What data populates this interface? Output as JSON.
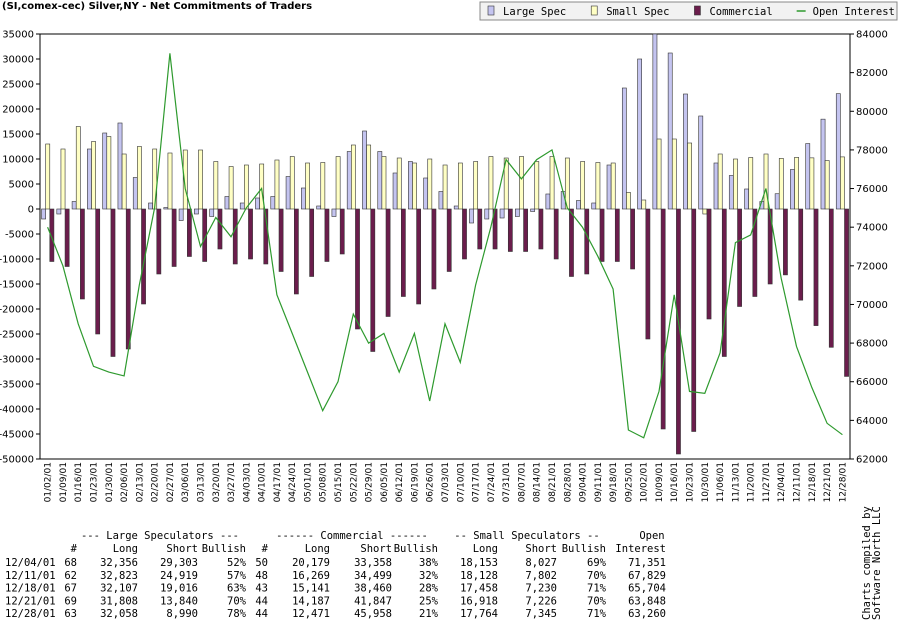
{
  "chart_data": {
    "type": "bar",
    "title": "(SI,comex-cec) Silver,NY - Net Commitments of Traders",
    "categories": [
      "01/02/01",
      "01/09/01",
      "01/16/01",
      "01/23/01",
      "01/30/01",
      "02/06/01",
      "02/13/01",
      "02/20/01",
      "02/27/01",
      "03/06/01",
      "03/13/01",
      "03/20/01",
      "03/27/01",
      "04/03/01",
      "04/10/01",
      "04/17/01",
      "04/24/01",
      "05/01/01",
      "05/08/01",
      "05/15/01",
      "05/22/01",
      "05/29/01",
      "06/05/01",
      "06/12/01",
      "06/19/01",
      "06/26/01",
      "07/03/01",
      "07/10/01",
      "07/17/01",
      "07/24/01",
      "07/31/01",
      "08/07/01",
      "08/14/01",
      "08/21/01",
      "08/28/01",
      "09/04/01",
      "09/11/01",
      "09/18/01",
      "09/25/01",
      "10/02/01",
      "10/09/01",
      "10/16/01",
      "10/23/01",
      "10/30/01",
      "11/06/01",
      "11/13/01",
      "11/20/01",
      "11/27/01",
      "12/04/01",
      "12/11/01",
      "12/18/01",
      "12/21/01",
      "12/28/01"
    ],
    "series": [
      {
        "name": "Large Spec",
        "color": "#c4c4f0",
        "values": [
          -2000,
          -1000,
          1500,
          12000,
          15200,
          17200,
          6300,
          1200,
          300,
          -2300,
          -1000,
          -1500,
          2500,
          1200,
          2200,
          2500,
          6500,
          4200,
          600,
          -1500,
          11500,
          15600,
          11500,
          7200,
          9500,
          6200,
          3500,
          600,
          -2800,
          -2000,
          -1800,
          -1500,
          -500,
          3000,
          3500,
          1700,
          1200,
          8800,
          24200,
          30000,
          35000,
          31200,
          23000,
          18600,
          9200,
          6700,
          4000,
          1500,
          3053,
          7904,
          13091,
          17968,
          23068
        ]
      },
      {
        "name": "Small Spec",
        "color": "#ffffc4",
        "values": [
          13000,
          12000,
          16500,
          13500,
          14500,
          11000,
          12500,
          12000,
          11200,
          11800,
          11800,
          9500,
          8500,
          8800,
          9000,
          9800,
          10500,
          9200,
          9300,
          10500,
          12800,
          12800,
          10500,
          10200,
          9200,
          10000,
          8800,
          9200,
          9500,
          10500,
          10200,
          10500,
          9500,
          10500,
          10200,
          9500,
          9300,
          9200,
          3300,
          1800,
          14000,
          14000,
          13200,
          -1000,
          11000,
          10000,
          10300,
          11000,
          10126,
          10326,
          10228,
          9692,
          10419
        ]
      },
      {
        "name": "Commercial",
        "color": "#6b1d4c",
        "values": [
          -10500,
          -11500,
          -18000,
          -25000,
          -29500,
          -28000,
          -19000,
          -13000,
          -11500,
          -9500,
          -10500,
          -8000,
          -11000,
          -10000,
          -11000,
          -12500,
          -17000,
          -13500,
          -10500,
          -9000,
          -24000,
          -28500,
          -21500,
          -17500,
          -19000,
          -16000,
          -12500,
          -10000,
          -8000,
          -8000,
          -8500,
          -8500,
          -8000,
          -10000,
          -13500,
          -13000,
          -10500,
          -10500,
          -12000,
          -26000,
          -44000,
          -49000,
          -44500,
          -22000,
          -29500,
          -19500,
          -17500,
          -15000,
          -13179,
          -18230,
          -23319,
          -27660,
          -33487
        ]
      },
      {
        "name": "Open Interest",
        "color": "#2e9a2e",
        "type": "line",
        "axis": "y2",
        "values": [
          74000,
          72000,
          69000,
          66800,
          66500,
          66300,
          71000,
          75000,
          83000,
          76000,
          73000,
          74500,
          73500,
          75000,
          76000,
          70500,
          68500,
          66500,
          64500,
          66000,
          69500,
          68000,
          68500,
          66500,
          68500,
          65000,
          69000,
          67000,
          71000,
          74000,
          77500,
          76500,
          77500,
          78000,
          75000,
          74000,
          72500,
          70800,
          63500,
          63100,
          65500,
          70500,
          65500,
          65400,
          67500,
          73200,
          73600,
          76000,
          71351,
          67829,
          65704,
          63848,
          63260
        ]
      }
    ],
    "ylim": [
      -50000,
      35000
    ],
    "yticks": [
      -50000,
      -45000,
      -40000,
      -35000,
      -30000,
      -25000,
      -20000,
      -15000,
      -10000,
      -5000,
      0,
      5000,
      10000,
      15000,
      20000,
      25000,
      30000,
      35000
    ],
    "y2lim": [
      62000,
      84000
    ],
    "y2ticks": [
      62000,
      64000,
      66000,
      68000,
      70000,
      72000,
      74000,
      76000,
      78000,
      80000,
      82000,
      84000
    ],
    "legend": "top-right"
  },
  "table": {
    "group_headers": [
      "--- Large Speculators ---",
      "------ Commercial ------",
      "-- Small Speculators --",
      "Open"
    ],
    "columns": [
      "#",
      "Long",
      "Short",
      "Bullish",
      "#",
      "Long",
      "Short",
      "Bullish",
      "Long",
      "Short",
      "Bullish",
      "Interest"
    ],
    "rows": [
      [
        "12/04/01",
        "68",
        "32,356",
        "29,303",
        "52%",
        "50",
        "20,179",
        "33,358",
        "38%",
        "18,153",
        "8,027",
        "69%",
        "71,351"
      ],
      [
        "12/11/01",
        "62",
        "32,823",
        "24,919",
        "57%",
        "48",
        "16,269",
        "34,499",
        "32%",
        "18,128",
        "7,802",
        "70%",
        "67,829"
      ],
      [
        "12/18/01",
        "67",
        "32,107",
        "19,016",
        "63%",
        "43",
        "15,141",
        "38,460",
        "28%",
        "17,458",
        "7,230",
        "71%",
        "65,704"
      ],
      [
        "12/21/01",
        "69",
        "31,808",
        "13,840",
        "70%",
        "44",
        "14,187",
        "41,847",
        "25%",
        "16,918",
        "7,226",
        "70%",
        "63,848"
      ],
      [
        "12/28/01",
        "63",
        "32,058",
        "8,990",
        "78%",
        "44",
        "12,471",
        "45,958",
        "21%",
        "17,764",
        "7,345",
        "71%",
        "63,260"
      ]
    ]
  },
  "credit": [
    "Charts compiled by",
    "Software North LLC"
  ]
}
